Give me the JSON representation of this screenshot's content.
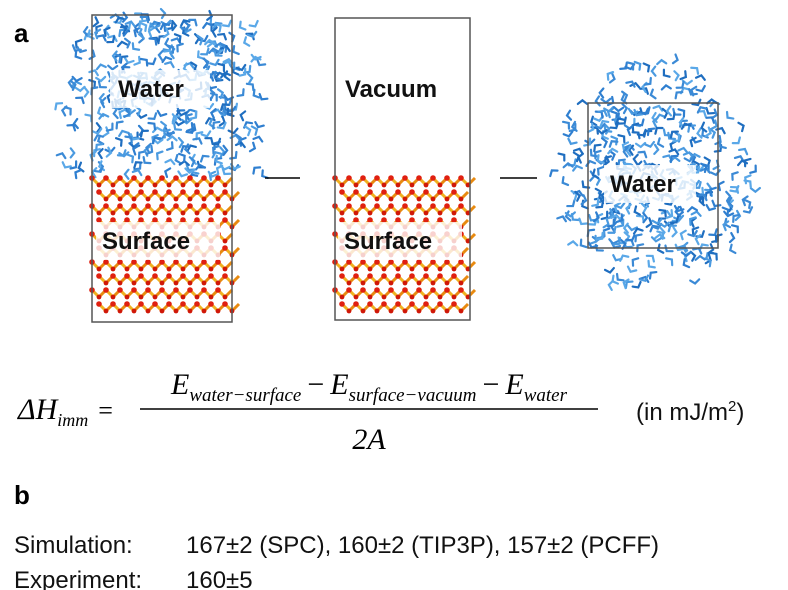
{
  "panel_a": {
    "label": "a",
    "scenes": [
      {
        "labels": [
          "Water",
          "Surface"
        ]
      },
      {
        "labels": [
          "Vacuum",
          "Surface"
        ]
      },
      {
        "labels": [
          "Water"
        ]
      }
    ],
    "equation": {
      "lhs": "ΔH",
      "lhs_sub": "imm",
      "equals": "=",
      "numerator": [
        {
          "symbol": "E",
          "sub": "water−surface"
        },
        {
          "op": "−",
          "symbol": "E",
          "sub": "surface−vacuum"
        },
        {
          "op": "−",
          "symbol": "E",
          "sub": "water"
        }
      ],
      "denominator": "2A",
      "units_prefix": "(in mJ/m",
      "units_sup": "2",
      "units_suffix": ")"
    }
  },
  "panel_b": {
    "label": "b",
    "rows": [
      {
        "name": "Simulation:",
        "value": "167±2 (SPC), 160±2 (TIP3P), 157±2 (PCFF)"
      },
      {
        "name": "Experiment:",
        "value": "160±5"
      }
    ]
  }
}
